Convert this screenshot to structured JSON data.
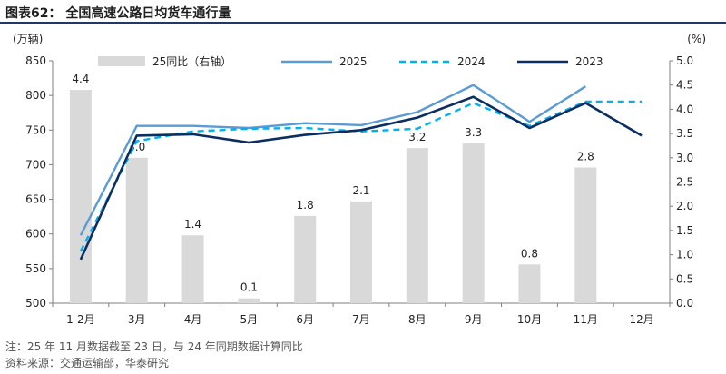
{
  "header": {
    "title": "图表62： 全国高速公路日均货车通行量"
  },
  "footnotes": {
    "note": "注：25 年 11 月数据截至 23 日，与 24 年同期数据计算同比",
    "source": "资料来源：交通运输部，华泰研究"
  },
  "chart_data": {
    "type": "bar+line",
    "categories": [
      "1-2月",
      "3月",
      "4月",
      "5月",
      "6月",
      "7月",
      "8月",
      "9月",
      "10月",
      "11月",
      "12月"
    ],
    "left_axis": {
      "unit": "(万辆)",
      "range": [
        500,
        850
      ],
      "ticks": [
        500,
        550,
        600,
        650,
        700,
        750,
        800,
        850
      ]
    },
    "right_axis": {
      "unit": "(%)",
      "range": [
        0.0,
        5.0
      ],
      "ticks": [
        "0.0",
        "0.5",
        "1.0",
        "1.5",
        "2.0",
        "2.5",
        "3.0",
        "3.5",
        "4.0",
        "4.5",
        "5.0"
      ]
    },
    "bar_series": {
      "name": "25同比（右轴）",
      "axis": "right",
      "values": [
        4.4,
        3.0,
        1.4,
        0.1,
        1.8,
        2.1,
        3.2,
        3.3,
        0.8,
        2.8,
        null
      ],
      "labels": [
        "4.4",
        "3.0",
        "1.4",
        "0.1",
        "1.8",
        "2.1",
        "3.2",
        "3.3",
        "0.8",
        "2.8",
        ""
      ],
      "color": "#d9d9d9"
    },
    "line_series": [
      {
        "name": "2025",
        "axis": "left",
        "style": "solid",
        "color": "#5b9bd5",
        "values": [
          598,
          756,
          756,
          753,
          760,
          757,
          776,
          815,
          762,
          813,
          null
        ]
      },
      {
        "name": "2024",
        "axis": "left",
        "style": "dashed",
        "color": "#00b0f0",
        "values": [
          575,
          734,
          748,
          752,
          753,
          748,
          752,
          789,
          756,
          791,
          791
        ]
      },
      {
        "name": "2023",
        "axis": "left",
        "style": "solid",
        "color": "#0b2e62",
        "values": [
          563,
          742,
          744,
          732,
          743,
          750,
          768,
          798,
          753,
          789,
          742
        ]
      }
    ],
    "legend": {
      "placement": "top",
      "entries": [
        "25同比（右轴）",
        "2025",
        "2024",
        "2023"
      ]
    },
    "grid": false
  }
}
